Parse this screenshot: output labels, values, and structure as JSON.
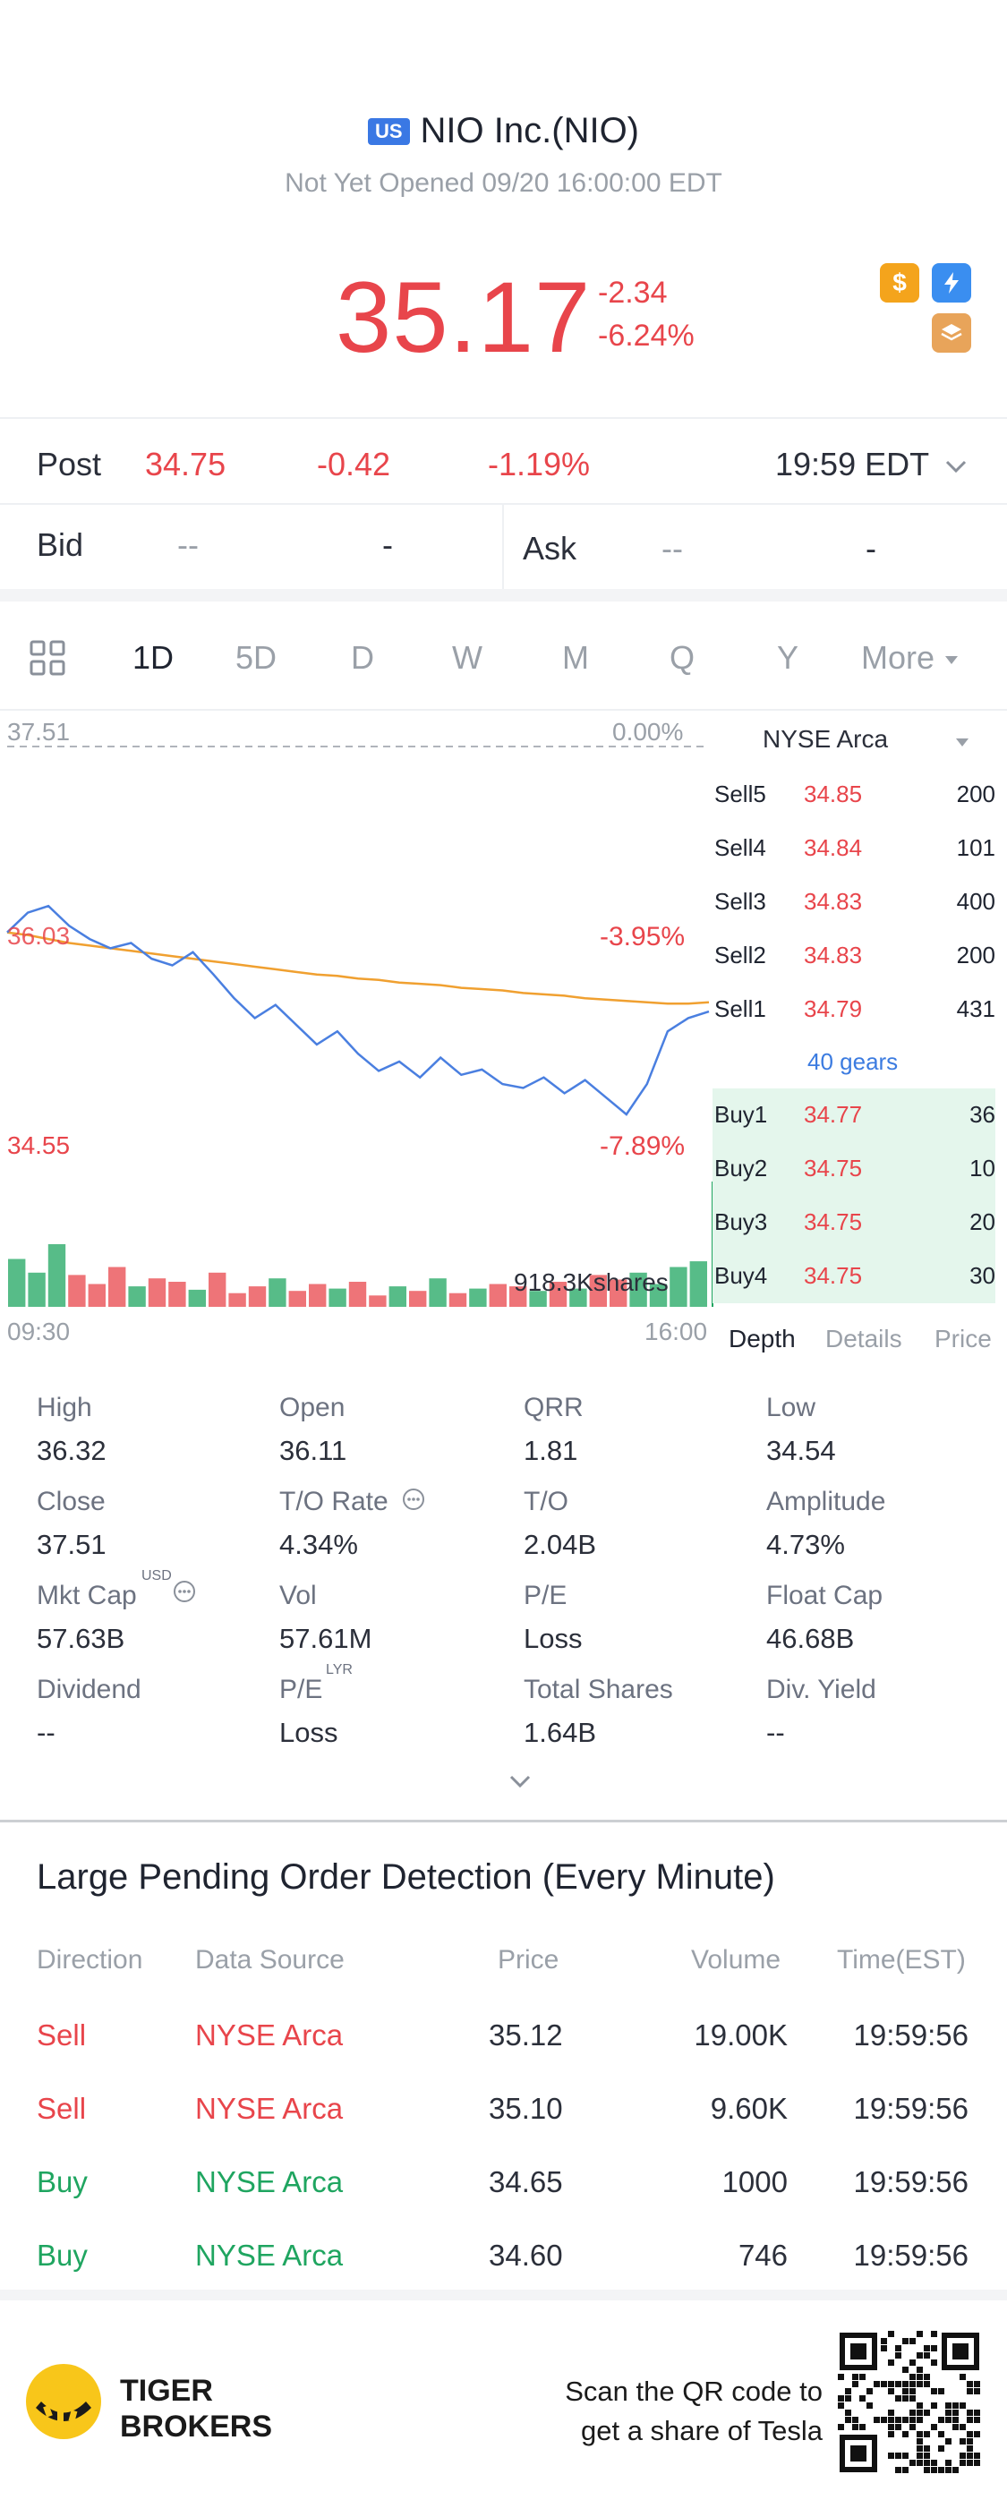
{
  "header": {
    "market_badge": "US",
    "title": "NIO Inc.(NIO)",
    "status": "Not Yet Opened 09/20 16:00:00 EDT"
  },
  "quote": {
    "price": "35.17",
    "change": "-2.34",
    "change_pct": "-6.24%"
  },
  "post": {
    "label": "Post",
    "price": "34.75",
    "change": "-0.42",
    "change_pct": "-1.19%",
    "time": "19:59 EDT"
  },
  "bidask": {
    "bid_label": "Bid",
    "bid_price": "--",
    "bid_size": "-",
    "ask_label": "Ask",
    "ask_price": "--",
    "ask_size": "-"
  },
  "tabs": [
    "1D",
    "5D",
    "D",
    "W",
    "M",
    "Q",
    "Y",
    "More"
  ],
  "active_tab": "1D",
  "chart": {
    "top_price": "37.51",
    "top_pct": "0.00%",
    "mid_price": "36.03",
    "mid_pct": "-3.95%",
    "low_price": "34.55",
    "low_pct": "-7.89%",
    "volume_label": "918.3Kshares",
    "time_start": "09:30",
    "time_end": "16:00"
  },
  "chart_data": {
    "type": "line",
    "x_range": [
      "09:30",
      "16:00"
    ],
    "ylim": [
      34.55,
      37.51
    ],
    "series": [
      {
        "values": [
          36.1,
          36.25,
          36.3,
          36.15,
          36.05,
          35.98,
          36.02,
          35.9,
          35.85,
          35.95,
          35.78,
          35.6,
          35.45,
          35.55,
          35.4,
          35.25,
          35.35,
          35.18,
          35.05,
          35.12,
          35.0,
          35.15,
          35.02,
          35.06,
          34.95,
          34.92,
          35.0,
          34.88,
          34.98,
          34.85,
          34.72,
          34.95,
          35.35,
          35.45,
          35.5
        ]
      },
      {
        "values": [
          36.1,
          36.08,
          36.05,
          36.02,
          36.0,
          35.98,
          35.96,
          35.94,
          35.92,
          35.9,
          35.88,
          35.86,
          35.84,
          35.82,
          35.8,
          35.78,
          35.77,
          35.75,
          35.74,
          35.72,
          35.71,
          35.7,
          35.68,
          35.67,
          35.66,
          35.64,
          35.63,
          35.62,
          35.6,
          35.59,
          35.58,
          35.57,
          35.56,
          35.56,
          35.57
        ]
      }
    ],
    "volume": [
      42,
      30,
      55,
      28,
      20,
      35,
      18,
      25,
      22,
      15,
      30,
      12,
      18,
      25,
      14,
      20,
      16,
      22,
      10,
      18,
      14,
      25,
      12,
      16,
      20,
      18,
      14,
      22,
      16,
      28,
      24,
      30,
      20,
      35,
      40
    ]
  },
  "orderbook": {
    "exchange": "NYSE Arca",
    "sells": [
      {
        "name": "Sell5",
        "price": "34.85",
        "vol": "200"
      },
      {
        "name": "Sell4",
        "price": "34.84",
        "vol": "101"
      },
      {
        "name": "Sell3",
        "price": "34.83",
        "vol": "400"
      },
      {
        "name": "Sell2",
        "price": "34.83",
        "vol": "200"
      },
      {
        "name": "Sell1",
        "price": "34.79",
        "vol": "431"
      }
    ],
    "gears": "40 gears",
    "buys": [
      {
        "name": "Buy1",
        "price": "34.77",
        "vol": "36"
      },
      {
        "name": "Buy2",
        "price": "34.75",
        "vol": "10"
      },
      {
        "name": "Buy3",
        "price": "34.75",
        "vol": "20"
      },
      {
        "name": "Buy4",
        "price": "34.75",
        "vol": "30"
      }
    ],
    "tabs": [
      "Depth",
      "Details",
      "Price"
    ]
  },
  "stats": [
    {
      "label": "High",
      "value": "36.32"
    },
    {
      "label": "Open",
      "value": "36.11"
    },
    {
      "label": "QRR",
      "value": "1.81"
    },
    {
      "label": "Low",
      "value": "34.54"
    },
    {
      "label": "Close",
      "value": "37.51"
    },
    {
      "label": "T/O Rate",
      "value": "4.34%"
    },
    {
      "label": "T/O",
      "value": "2.04B"
    },
    {
      "label": "Amplitude",
      "value": "4.73%"
    },
    {
      "label": "Mkt Cap",
      "value": "57.63B",
      "sup": "USD"
    },
    {
      "label": "Vol",
      "value": "57.61M"
    },
    {
      "label": "P/E",
      "value": "Loss"
    },
    {
      "label": "Float Cap",
      "value": "46.68B"
    },
    {
      "label": "Dividend",
      "value": "--"
    },
    {
      "label": "P/E",
      "value": "Loss",
      "sup": "LYR"
    },
    {
      "label": "Total Shares",
      "value": "1.64B"
    },
    {
      "label": "Div. Yield",
      "value": "--"
    }
  ],
  "large_orders": {
    "title": "Large Pending Order Detection (Every Minute)",
    "headers": [
      "Direction",
      "Data Source",
      "Price",
      "Volume",
      "Time(EST)"
    ],
    "rows": [
      {
        "direction": "Sell",
        "source": "NYSE Arca",
        "price": "35.12",
        "volume": "19.00K",
        "time": "19:59:56"
      },
      {
        "direction": "Sell",
        "source": "NYSE Arca",
        "price": "35.10",
        "volume": "9.60K",
        "time": "19:59:56"
      },
      {
        "direction": "Buy",
        "source": "NYSE Arca",
        "price": "34.65",
        "volume": "1000",
        "time": "19:59:56"
      },
      {
        "direction": "Buy",
        "source": "NYSE Arca",
        "price": "34.60",
        "volume": "746",
        "time": "19:59:56"
      }
    ]
  },
  "footer": {
    "brand_line1": "TIGER",
    "brand_line2": "BROKERS",
    "cta_line1": "Scan the QR code to",
    "cta_line2": "get a share of Tesla"
  },
  "colors": {
    "up": "#1fa560",
    "down": "#e8454b",
    "accent": "#3b7be0",
    "avg_line": "#f0a030"
  }
}
